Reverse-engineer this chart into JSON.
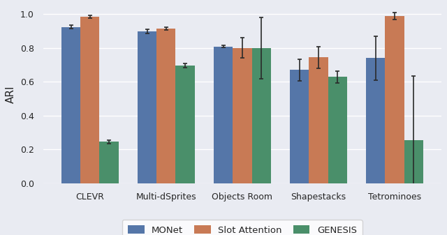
{
  "categories": [
    "CLEVR",
    "Multi-dSprites",
    "Objects Room",
    "Shapestacks",
    "Tetrominoes"
  ],
  "methods": [
    "MONet",
    "Slot Attention",
    "GENESIS"
  ],
  "values": {
    "MONet": [
      0.925,
      0.9,
      0.81,
      0.67,
      0.74
    ],
    "Slot Attention": [
      0.987,
      0.915,
      0.8,
      0.745,
      0.99
    ],
    "GENESIS": [
      0.245,
      0.695,
      0.8,
      0.63,
      0.255
    ]
  },
  "errors": {
    "MONet": [
      0.01,
      0.012,
      0.008,
      0.065,
      0.13
    ],
    "Slot Attention": [
      0.008,
      0.01,
      0.06,
      0.065,
      0.02
    ],
    "GENESIS": [
      0.012,
      0.012,
      0.18,
      0.035,
      0.38
    ]
  },
  "colors": {
    "MONet": "#5576a8",
    "Slot Attention": "#c87a55",
    "GENESIS": "#4a8f6a"
  },
  "ylabel": "ARI",
  "ylim": [
    0.0,
    1.05
  ],
  "background_color": "#e9ebf2",
  "bar_width": 0.25,
  "figsize": [
    6.4,
    3.37
  ],
  "dpi": 100
}
